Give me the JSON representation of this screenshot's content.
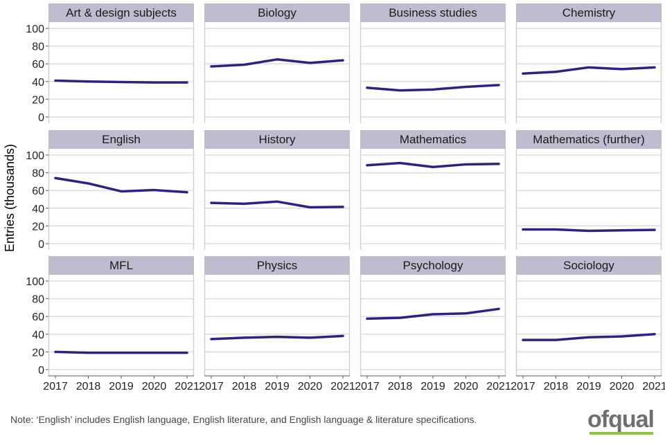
{
  "chart_data": {
    "type": "line",
    "ylabel": "Entries (thousands)",
    "x": [
      2017,
      2018,
      2019,
      2020,
      2021
    ],
    "x_tick_labels": [
      "2017",
      "2018",
      "2019",
      "2020",
      "2021"
    ],
    "ylim": [
      0,
      100
    ],
    "y_ticks": [
      0,
      20,
      40,
      60,
      80,
      100
    ],
    "grid": true,
    "line_color": "#2e2182",
    "strip_color": "#bdbdcf",
    "panels": [
      {
        "name": "Art & design subjects",
        "values": [
          41,
          40,
          39.5,
          39,
          39
        ]
      },
      {
        "name": "Biology",
        "values": [
          57,
          59,
          65,
          61,
          64
        ]
      },
      {
        "name": "Business studies",
        "values": [
          33,
          30,
          31,
          34,
          36
        ]
      },
      {
        "name": "Chemistry",
        "values": [
          49,
          51,
          56,
          54,
          56
        ]
      },
      {
        "name": "English",
        "values": [
          74,
          68,
          59,
          60.5,
          58
        ]
      },
      {
        "name": "History",
        "values": [
          46,
          45,
          47.5,
          41,
          41.5
        ]
      },
      {
        "name": "Mathematics",
        "values": [
          88.5,
          91,
          86.5,
          89.5,
          90
        ]
      },
      {
        "name": "Mathematics (further)",
        "values": [
          16,
          16,
          14.5,
          15,
          15.5
        ]
      },
      {
        "name": "MFL",
        "values": [
          20,
          19,
          19,
          19,
          19
        ]
      },
      {
        "name": "Physics",
        "values": [
          34.5,
          36,
          37,
          36,
          38
        ]
      },
      {
        "name": "Psychology",
        "values": [
          57.5,
          58.5,
          62.5,
          63.5,
          68.5
        ]
      },
      {
        "name": "Sociology",
        "values": [
          33.5,
          33.5,
          36.5,
          37.5,
          40
        ]
      }
    ]
  },
  "note": "Note: ‘English’ includes English language, English literature, and English language & literature specifications.",
  "logo": {
    "text": "ofqual",
    "bar_color": "#8cc63f"
  }
}
